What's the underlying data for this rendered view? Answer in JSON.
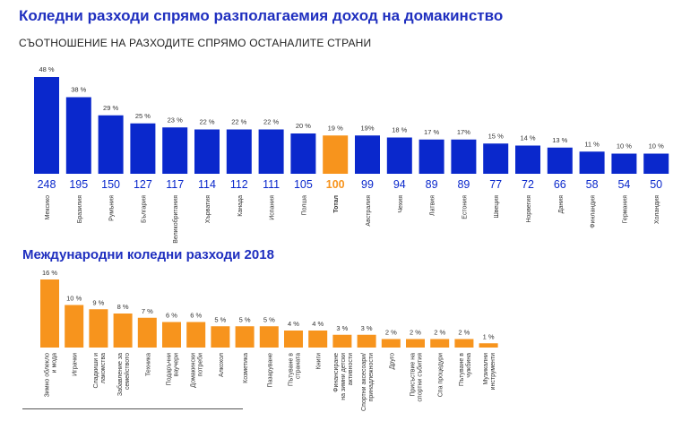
{
  "colors": {
    "blue": "#0a28cc",
    "highlight": "#f7941d",
    "orange": "#f7941d",
    "title": "#1f2fbf"
  },
  "chart_data": [
    {
      "type": "bar",
      "title": "Коледни разходи спрямо разполагаемия доход на домакинство",
      "subtitle": "СЪОТНОШЕНИЕ НА РАЗХОДИТЕ СПРЯМО ОСТАНАЛИТЕ СТРАНИ",
      "categories": [
        "Мексико",
        "Бразилия",
        "Румъния",
        "България",
        "Великобритания",
        "Хърватия",
        "Канада",
        "Испания",
        "Полша",
        "Тотал",
        "Австралия",
        "Чехия",
        "Латвия",
        "Естония",
        "Швеция",
        "Норвегия",
        "Дания",
        "Финландия",
        "Германия",
        "Холандия"
      ],
      "values": [
        48,
        38,
        29,
        25,
        23,
        22,
        22,
        22,
        20,
        19,
        19,
        18,
        17,
        17,
        15,
        14,
        13,
        11,
        10,
        10
      ],
      "value_labels": [
        "48 %",
        "38 %",
        "29 %",
        "25 %",
        "23 %",
        "22 %",
        "22 %",
        "22 %",
        "20 %",
        "19 %",
        "19%",
        "18 %",
        "17 %",
        "17%",
        "15 %",
        "14 %",
        "13 %",
        "11 %",
        "10 %",
        "10 %"
      ],
      "index": [
        "248",
        "195",
        "150",
        "127",
        "117",
        "114",
        "112",
        "111",
        "105",
        "100",
        "99",
        "94",
        "89",
        "89",
        "77",
        "72",
        "66",
        "58",
        "54",
        "50"
      ],
      "highlight": "Тотал"
    },
    {
      "type": "bar",
      "title": "Международни коледни разходи 2018",
      "categories": [
        "Зимно облекло и мода",
        "Играчки",
        "Сладкиши и лакомства",
        "Забавление за семейството",
        "Техника",
        "Подаръчни ваучери",
        "Домакински потреби",
        "Алкохол",
        "Козметика",
        "Пазаруване",
        "Пътуване в страната",
        "Книги",
        "Финансиране на зимни детски активности",
        "Спортни аксесоари/ принадлежности",
        "Друго",
        "Присъствие на спортни събития",
        "Спа процедури",
        "Пътуване в чужбина",
        "Музикални инструменти"
      ],
      "values": [
        16,
        10,
        9,
        8,
        7,
        6,
        6,
        5,
        5,
        5,
        4,
        4,
        3,
        3,
        2,
        2,
        2,
        2,
        1
      ],
      "value_labels": [
        "16 %",
        "10 %",
        "9 %",
        "8 %",
        "7 %",
        "6 %",
        "6 %",
        "5 %",
        "5 %",
        "5 %",
        "4 %",
        "4 %",
        "3 %",
        "3 %",
        "2 %",
        "2 %",
        "2 %",
        "2 %",
        "1 %"
      ]
    }
  ]
}
